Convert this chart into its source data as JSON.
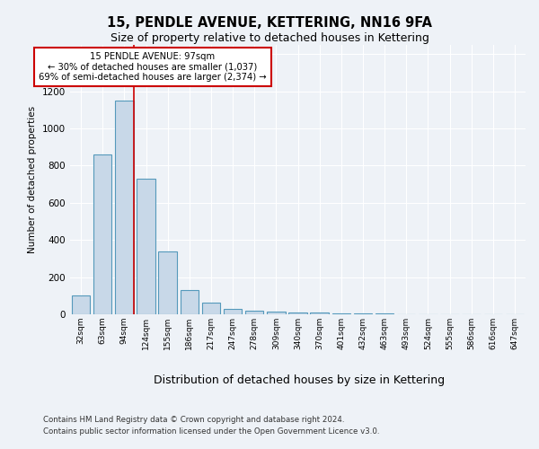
{
  "title1": "15, PENDLE AVENUE, KETTERING, NN16 9FA",
  "title2": "Size of property relative to detached houses in Kettering",
  "xlabel": "Distribution of detached houses by size in Kettering",
  "ylabel": "Number of detached properties",
  "categories": [
    "32sqm",
    "63sqm",
    "94sqm",
    "124sqm",
    "155sqm",
    "186sqm",
    "217sqm",
    "247sqm",
    "278sqm",
    "309sqm",
    "340sqm",
    "370sqm",
    "401sqm",
    "432sqm",
    "463sqm",
    "493sqm",
    "524sqm",
    "555sqm",
    "586sqm",
    "616sqm",
    "647sqm"
  ],
  "values": [
    100,
    860,
    1150,
    730,
    340,
    130,
    65,
    30,
    20,
    15,
    10,
    8,
    6,
    4,
    3,
    2,
    2,
    1,
    1,
    1,
    1
  ],
  "bar_color": "#c8d8e8",
  "bar_edge_color": "#5599bb",
  "annotation_text": "15 PENDLE AVENUE: 97sqm\n← 30% of detached houses are smaller (1,037)\n69% of semi-detached houses are larger (2,374) →",
  "footer1": "Contains HM Land Registry data © Crown copyright and database right 2024.",
  "footer2": "Contains public sector information licensed under the Open Government Licence v3.0.",
  "ylim": [
    0,
    1450
  ],
  "bg_color": "#eef2f7"
}
